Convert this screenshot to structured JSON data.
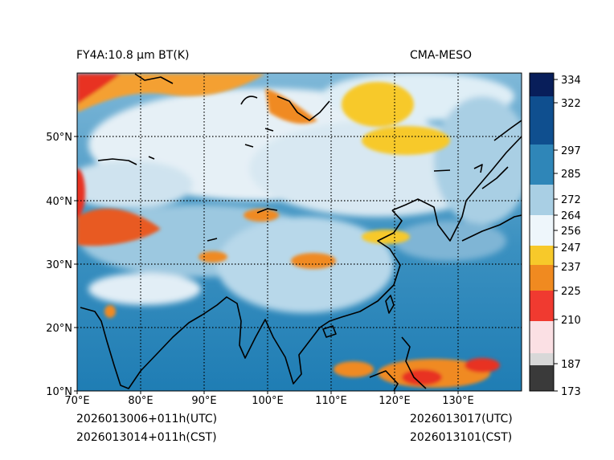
{
  "header": {
    "product_title": "FY4A:10.8 μm BT(K)",
    "model_name": "CMA-MESO"
  },
  "footer": {
    "init_utc": "2026013006+011h(UTC)",
    "init_cst": "2026013014+011h(CST)",
    "valid_utc": "2026013017(UTC)",
    "valid_cst": "2026013101(CST)"
  },
  "map": {
    "lon_ticks": [
      "70°E",
      "80°E",
      "90°E",
      "100°E",
      "110°E",
      "120°E",
      "130°E"
    ],
    "lat_ticks": [
      "10°N",
      "20°N",
      "30°N",
      "40°N",
      "50°N"
    ],
    "lon_range": [
      70,
      140
    ],
    "lat_range": [
      10,
      60
    ]
  },
  "colorbar": {
    "unit": "K",
    "range": [
      173,
      336
    ],
    "tick_labels": [
      "334",
      "322",
      "297",
      "285",
      "272",
      "264",
      "256",
      "247",
      "237",
      "225",
      "210",
      "187",
      "173"
    ],
    "tick_values": [
      334,
      322,
      297,
      285,
      272,
      264,
      256,
      247,
      237,
      225,
      210,
      187,
      173
    ]
  },
  "colors": {
    "ocean": "#2f86b8",
    "land_cloud": "#8fc0dc",
    "high_cloud": "#e8f2f8",
    "cold_orange": "#f08a20",
    "cold_yellow": "#f7c92a",
    "cold_red": "#e83020"
  }
}
